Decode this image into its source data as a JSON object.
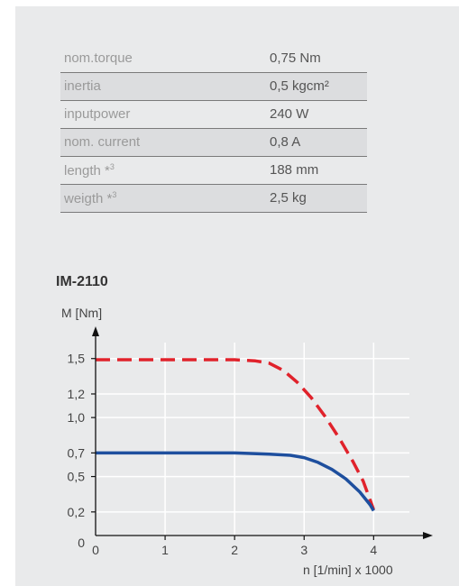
{
  "specs": [
    {
      "label": "nom.torque",
      "value": "0,75 Nm"
    },
    {
      "label": "inertia",
      "value": "0,5 kgcm²"
    },
    {
      "label": "inputpower",
      "value": "240 W"
    },
    {
      "label": "nom. current",
      "value": "0,8 A"
    },
    {
      "label": "length *",
      "sup": "3",
      "value": "188 mm"
    },
    {
      "label": "weigth *",
      "sup": "3",
      "value": "2,5 kg"
    }
  ],
  "chart_data": {
    "type": "line",
    "title": "IM-2110",
    "ylabel": "M [Nm]",
    "xlabel": "n [1/min] x 1000",
    "x_ticks": [
      "0",
      "1",
      "2",
      "3",
      "4"
    ],
    "y_ticks": [
      "0",
      "0,2",
      "0,5",
      "0,7",
      "1,0",
      "1,2",
      "1,5"
    ],
    "xlim": [
      0,
      4.8
    ],
    "ylim": [
      0,
      1.75
    ],
    "grid": true,
    "series": [
      {
        "color": "#e0222b",
        "style": "dashed",
        "x": [
          0,
          0.5,
          1.0,
          1.5,
          2.0,
          2.3,
          2.5,
          2.7,
          2.9,
          3.1,
          3.3,
          3.5,
          3.7,
          3.85,
          4.0
        ],
        "y": [
          1.49,
          1.49,
          1.49,
          1.49,
          1.49,
          1.48,
          1.46,
          1.4,
          1.3,
          1.17,
          1.01,
          0.83,
          0.63,
          0.46,
          0.22
        ]
      },
      {
        "color": "#1e4f9e",
        "style": "solid",
        "x": [
          0,
          0.5,
          1.0,
          1.5,
          2.0,
          2.5,
          2.8,
          3.0,
          3.2,
          3.4,
          3.6,
          3.8,
          3.95,
          4.0
        ],
        "y": [
          0.7,
          0.7,
          0.7,
          0.7,
          0.7,
          0.69,
          0.68,
          0.66,
          0.62,
          0.56,
          0.48,
          0.37,
          0.26,
          0.21
        ]
      }
    ]
  }
}
